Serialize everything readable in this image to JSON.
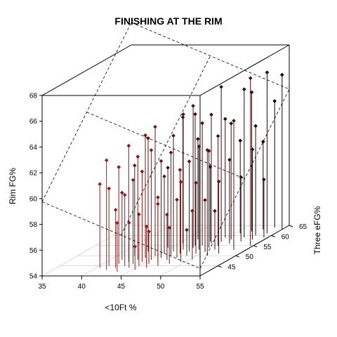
{
  "chart_data": {
    "type": "scatter3d",
    "title": "FINISHING AT THE RIM",
    "xlabel": "<10Ft %",
    "ylabel": "Three eFG%",
    "zlabel": "Rim FG%",
    "xlim": [
      35,
      55
    ],
    "ylim": [
      40,
      65
    ],
    "zlim": [
      54,
      68
    ],
    "x_ticks": [
      "35",
      "40",
      "45",
      "50",
      "55"
    ],
    "y_ticks": [
      "45",
      "50",
      "55",
      "60",
      "65"
    ],
    "z_ticks": [
      "54",
      "56",
      "58",
      "60",
      "62",
      "64",
      "66",
      "68"
    ],
    "drop_lines": true,
    "regression_plane": true,
    "plane_style": "dashed",
    "point_color_near": "#b22222",
    "point_color_far": "#000000",
    "points": [
      [
        40.5,
        44,
        60.5
      ],
      [
        41.2,
        45,
        60.0
      ],
      [
        41.8,
        43,
        62.5
      ],
      [
        42.0,
        46,
        61.5
      ],
      [
        42.5,
        44,
        58.5
      ],
      [
        42.8,
        47,
        63.0
      ],
      [
        43.2,
        45,
        59.5
      ],
      [
        43.5,
        48,
        62.0
      ],
      [
        43.8,
        46,
        60.5
      ],
      [
        44.0,
        49,
        63.5
      ],
      [
        44.2,
        44,
        57.5
      ],
      [
        44.5,
        47,
        61.0
      ],
      [
        44.8,
        50,
        64.0
      ],
      [
        45.0,
        45,
        58.0
      ],
      [
        45.2,
        48,
        62.5
      ],
      [
        45.5,
        51,
        60.0
      ],
      [
        45.8,
        46,
        56.5
      ],
      [
        46.0,
        49,
        61.5
      ],
      [
        46.2,
        52,
        63.0
      ],
      [
        46.5,
        47,
        59.0
      ],
      [
        46.8,
        50,
        62.0
      ],
      [
        47.0,
        53,
        64.5
      ],
      [
        47.2,
        48,
        57.5
      ],
      [
        47.5,
        51,
        60.5
      ],
      [
        47.8,
        54,
        65.0
      ],
      [
        48.0,
        49,
        58.5
      ],
      [
        48.2,
        52,
        61.0
      ],
      [
        48.5,
        55,
        63.5
      ],
      [
        48.8,
        50,
        56.0
      ],
      [
        49.0,
        53,
        62.0
      ],
      [
        49.2,
        56,
        64.0
      ],
      [
        49.5,
        51,
        59.5
      ],
      [
        49.8,
        54,
        61.5
      ],
      [
        50.0,
        57,
        66.0
      ],
      [
        50.2,
        52,
        58.0
      ],
      [
        50.5,
        55,
        62.5
      ],
      [
        50.8,
        58,
        63.0
      ],
      [
        51.0,
        53,
        57.0
      ],
      [
        51.5,
        56,
        60.5
      ],
      [
        52.0,
        59,
        65.5
      ],
      [
        52.5,
        57,
        59.0
      ],
      [
        53.0,
        60,
        62.5
      ],
      [
        53.5,
        58,
        61.0
      ],
      [
        54.0,
        61,
        66.5
      ],
      [
        54.5,
        59,
        58.5
      ],
      [
        42.2,
        50,
        61.0
      ],
      [
        43.0,
        52,
        62.8
      ],
      [
        44.6,
        54,
        60.2
      ],
      [
        45.6,
        56,
        63.8
      ],
      [
        46.6,
        58,
        61.8
      ],
      [
        47.6,
        55,
        64.2
      ],
      [
        48.6,
        57,
        59.8
      ],
      [
        49.6,
        59,
        63.2
      ],
      [
        50.6,
        61,
        61.2
      ],
      [
        51.6,
        62,
        64.8
      ],
      [
        52.6,
        63,
        60.8
      ],
      [
        53.6,
        64,
        63.8
      ],
      [
        41.5,
        48,
        59.2
      ],
      [
        43.6,
        42,
        57.8
      ],
      [
        45.4,
        43,
        55.8
      ],
      [
        46.4,
        44,
        57.2
      ],
      [
        47.4,
        45,
        58.8
      ],
      [
        48.4,
        46,
        56.8
      ],
      [
        49.4,
        47,
        60.2
      ],
      [
        50.4,
        48,
        57.8
      ],
      [
        51.4,
        50,
        62.2
      ],
      [
        52.4,
        51,
        59.6
      ],
      [
        53.4,
        53,
        64.0
      ],
      [
        54.6,
        55,
        67.0
      ],
      [
        55.0,
        63,
        66.0
      ]
    ]
  }
}
